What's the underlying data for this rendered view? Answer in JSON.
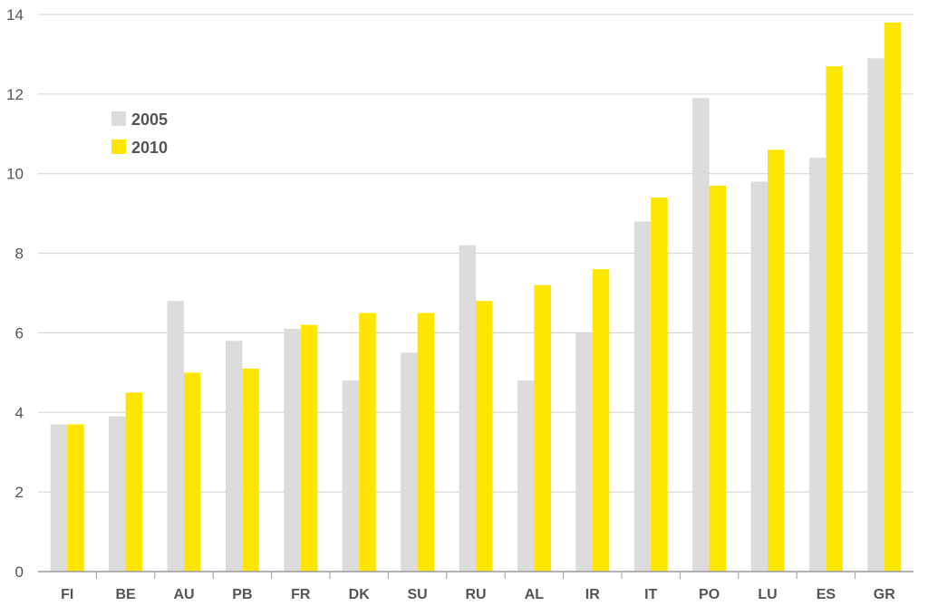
{
  "chart_data": {
    "type": "bar",
    "title": "",
    "xlabel": "",
    "ylabel": "",
    "ylim": [
      0,
      14
    ],
    "yticks": [
      0,
      2,
      4,
      6,
      8,
      10,
      12,
      14
    ],
    "grid": true,
    "legend_position": "top-left",
    "categories": [
      "FI",
      "BE",
      "AU",
      "PB",
      "FR",
      "DK",
      "SU",
      "RU",
      "AL",
      "IR",
      "IT",
      "PO",
      "LU",
      "ES",
      "GR"
    ],
    "series": [
      {
        "name": "2005",
        "color": "#dcdcdc",
        "values": [
          3.7,
          3.9,
          6.8,
          5.8,
          6.1,
          4.8,
          5.5,
          8.2,
          4.8,
          6.0,
          8.8,
          11.9,
          9.8,
          10.4,
          12.9
        ]
      },
      {
        "name": "2010",
        "color": "#ffe600",
        "values": [
          3.7,
          4.5,
          5.0,
          5.1,
          6.2,
          6.5,
          6.5,
          6.8,
          7.2,
          7.6,
          9.4,
          9.7,
          10.6,
          12.7,
          13.8
        ]
      }
    ]
  }
}
